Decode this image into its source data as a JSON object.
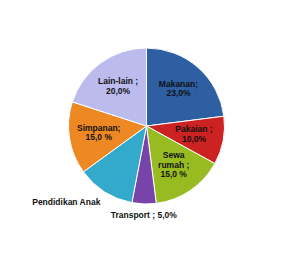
{
  "chart_data": {
    "type": "pie",
    "categories": [
      "Makanan;\n23,0%",
      "Pakaian ;\n10,0%",
      "Sewa\nrumah ;\n15,0 %",
      "Transport ; 5,0%",
      "Pendidikan Anak",
      "Simpanan;\n15,0 %",
      "Lain-lain ;\n20,0%"
    ],
    "values": [
      23.0,
      10.0,
      15.0,
      5.0,
      12.0,
      15.0,
      20.0
    ],
    "colors": [
      "#2E5FA3",
      "#CC2222",
      "#99BB22",
      "#7744AA",
      "#33AACC",
      "#EE8822",
      "#BBBBEE"
    ]
  }
}
